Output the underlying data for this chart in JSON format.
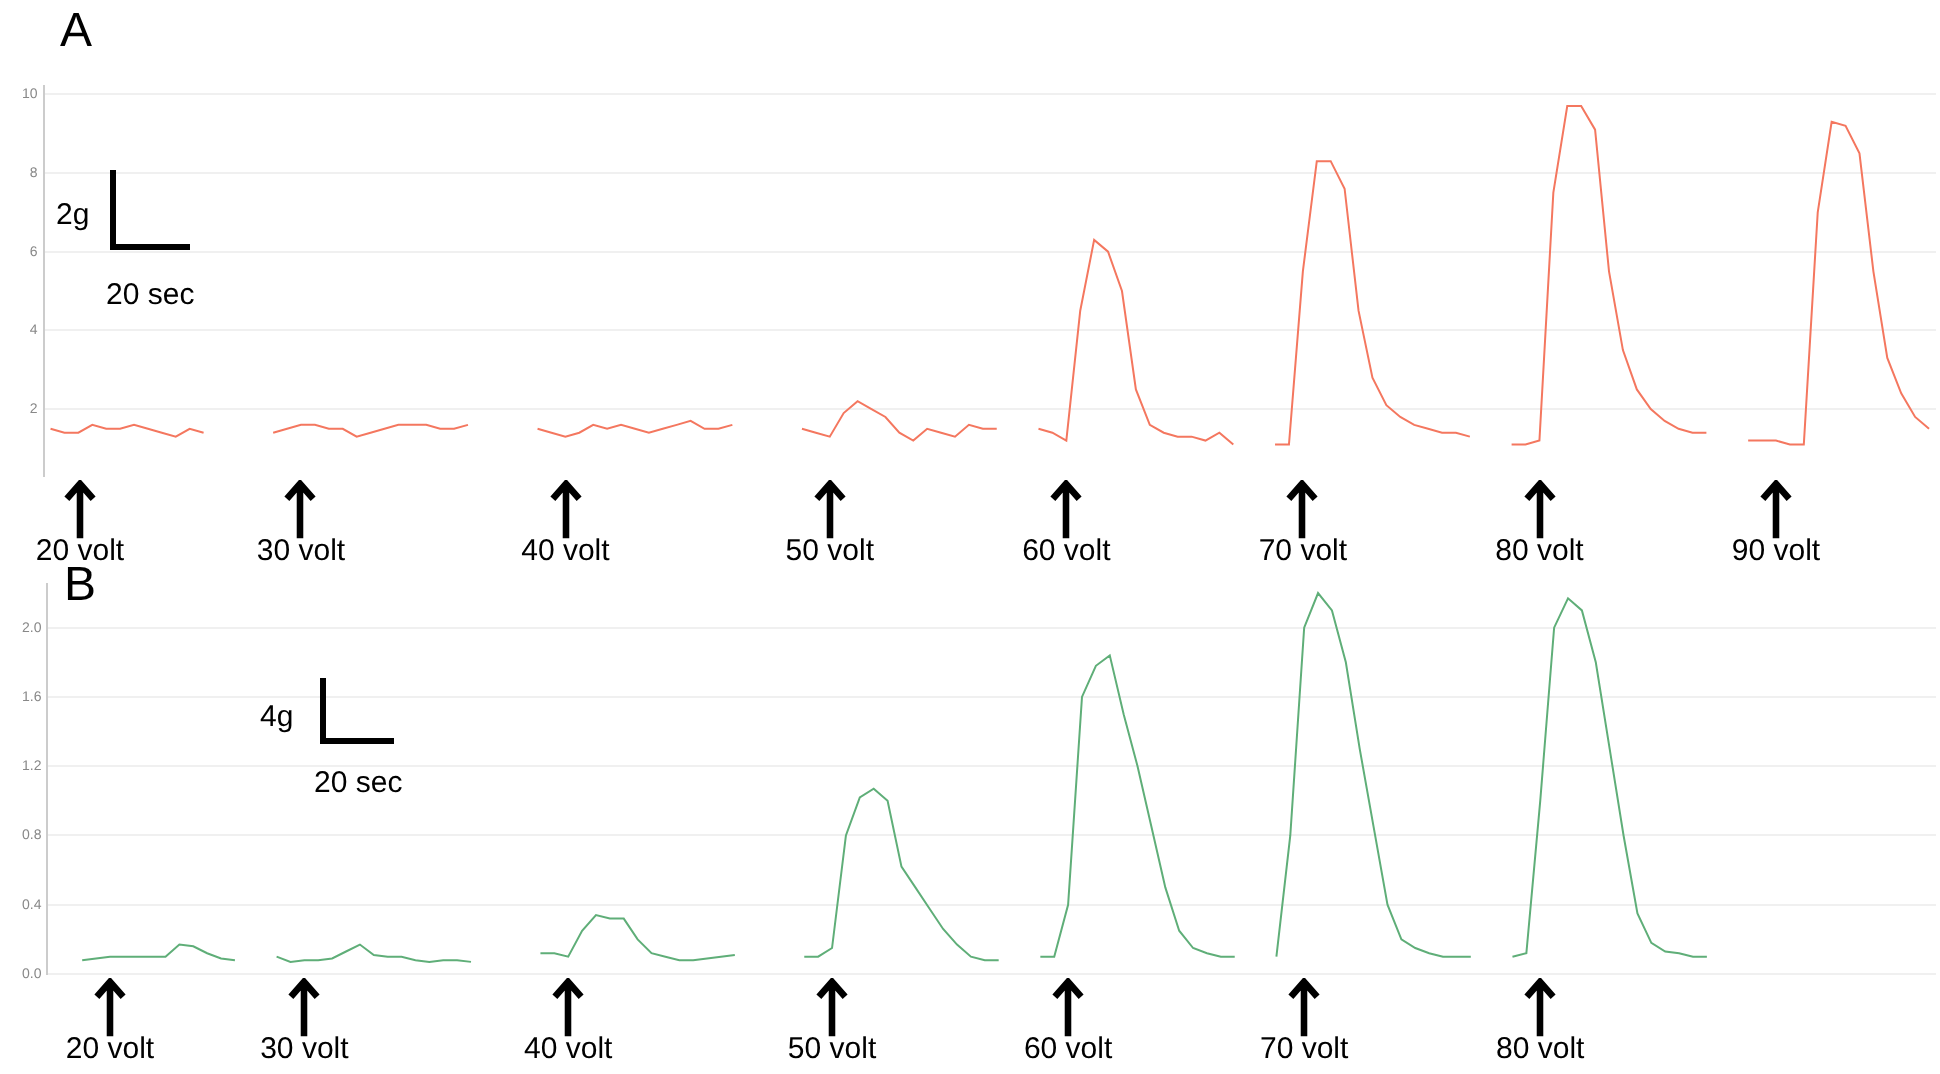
{
  "chart_data": [
    {
      "type": "line",
      "title": "A",
      "categories": [
        null,
        null,
        null,
        null,
        null,
        null,
        null,
        null,
        null,
        null,
        null,
        null,
        null,
        null,
        null,
        null,
        null,
        null,
        null,
        null,
        null,
        null,
        null,
        null,
        null,
        null,
        null,
        null,
        null,
        null,
        null,
        null,
        null,
        null,
        null,
        null,
        null,
        null,
        null,
        null,
        null,
        null,
        null,
        null,
        null,
        null,
        null,
        null,
        null,
        null,
        null,
        null,
        null,
        null,
        null,
        null,
        null,
        null,
        null,
        null,
        null,
        null,
        null,
        null,
        null,
        null,
        null,
        null,
        null,
        null,
        null,
        null,
        null,
        null,
        null,
        null,
        null,
        null,
        null,
        null,
        null,
        null,
        null,
        null,
        null,
        null,
        null,
        null,
        null,
        null,
        null,
        null,
        null,
        null,
        null,
        null,
        null,
        null,
        null,
        null,
        null,
        null,
        null,
        null,
        null,
        null,
        null,
        null,
        null,
        null,
        null,
        null,
        null,
        null,
        null,
        null,
        null,
        null,
        null,
        null,
        null,
        null,
        null,
        null,
        null,
        null,
        null,
        null,
        null,
        null,
        null,
        null,
        null,
        null,
        null,
        null
      ],
      "series": [
        {
          "color": "#f4775f",
          "values": [
            1.5,
            1.4,
            1.4,
            1.6,
            1.5,
            1.5,
            1.6,
            1.5,
            1.4,
            1.3,
            1.5,
            1.4,
            null,
            null,
            null,
            null,
            1.4,
            1.5,
            1.6,
            1.6,
            1.5,
            1.5,
            1.3,
            1.4,
            1.5,
            1.6,
            1.6,
            1.6,
            1.5,
            1.5,
            1.6,
            null,
            null,
            null,
            null,
            1.5,
            1.4,
            1.3,
            1.4,
            1.6,
            1.5,
            1.6,
            1.5,
            1.4,
            1.5,
            1.6,
            1.7,
            1.5,
            1.5,
            1.6,
            null,
            null,
            null,
            null,
            1.5,
            1.4,
            1.3,
            1.9,
            2.2,
            2.0,
            1.8,
            1.4,
            1.2,
            1.5,
            1.4,
            1.3,
            1.6,
            1.5,
            1.5,
            null,
            null,
            1.5,
            1.4,
            1.2,
            4.5,
            6.3,
            6.0,
            5.0,
            2.5,
            1.6,
            1.4,
            1.3,
            1.3,
            1.2,
            1.4,
            1.1,
            null,
            null,
            1.1,
            1.1,
            5.5,
            8.3,
            8.3,
            7.6,
            4.5,
            2.8,
            2.1,
            1.8,
            1.6,
            1.5,
            1.4,
            1.4,
            1.3,
            null,
            null,
            1.1,
            1.1,
            1.2,
            7.5,
            9.7,
            9.7,
            9.1,
            5.5,
            3.5,
            2.5,
            2.0,
            1.7,
            1.5,
            1.4,
            1.4,
            null,
            null,
            1.2,
            1.2,
            1.2,
            1.1,
            1.1,
            7.0,
            9.3,
            9.2,
            8.5,
            5.5,
            3.3,
            2.4,
            1.8,
            1.5
          ]
        }
      ],
      "ylim": [
        0.3,
        10.2
      ],
      "yticks": [
        2,
        4,
        6,
        8,
        10
      ],
      "grid": "y",
      "annotations": [
        "2g",
        "20 sec",
        "20 volt",
        "30 volt",
        "40 volt",
        "50 volt",
        "60 volt",
        "70 volt",
        "80 volt",
        "90 volt"
      ]
    },
    {
      "type": "line",
      "title": "B",
      "categories": [
        null,
        null,
        null,
        null,
        null,
        null,
        null,
        null,
        null,
        null,
        null,
        null,
        null,
        null,
        null,
        null,
        null,
        null,
        null,
        null,
        null,
        null,
        null,
        null,
        null,
        null,
        null,
        null,
        null,
        null,
        null,
        null,
        null,
        null,
        null,
        null,
        null,
        null,
        null,
        null,
        null,
        null,
        null,
        null,
        null,
        null,
        null,
        null,
        null,
        null,
        null,
        null,
        null,
        null,
        null,
        null,
        null,
        null,
        null,
        null,
        null,
        null,
        null,
        null,
        null,
        null,
        null,
        null,
        null,
        null,
        null,
        null,
        null,
        null,
        null,
        null,
        null,
        null,
        null,
        null,
        null,
        null,
        null,
        null,
        null,
        null,
        null,
        null,
        null,
        null,
        null,
        null,
        null,
        null,
        null,
        null,
        null,
        null,
        null,
        null,
        null,
        null,
        null,
        null,
        null,
        null,
        null,
        null,
        null,
        null,
        null,
        null,
        null,
        null,
        null,
        null,
        null,
        null,
        null,
        null,
        null,
        null,
        null,
        null,
        null,
        null,
        null,
        null,
        null,
        null,
        null,
        null,
        null,
        null,
        null,
        null
      ],
      "series": [
        {
          "color": "#5fae78",
          "values": [
            null,
            null,
            0.08,
            0.09,
            0.1,
            0.1,
            0.1,
            0.1,
            0.1,
            0.17,
            0.16,
            0.12,
            0.09,
            0.08,
            null,
            null,
            0.1,
            0.07,
            0.08,
            0.08,
            0.09,
            0.13,
            0.17,
            0.11,
            0.1,
            0.1,
            0.08,
            0.07,
            0.08,
            0.08,
            0.07,
            null,
            null,
            null,
            null,
            0.12,
            0.12,
            0.1,
            0.25,
            0.34,
            0.32,
            0.32,
            0.2,
            0.12,
            0.1,
            0.08,
            0.08,
            0.09,
            0.1,
            0.11,
            null,
            null,
            null,
            null,
            0.1,
            0.1,
            0.15,
            0.8,
            1.02,
            1.07,
            1.0,
            0.62,
            0.5,
            0.38,
            0.26,
            0.17,
            0.1,
            0.08,
            0.08,
            null,
            null,
            0.1,
            0.1,
            0.4,
            1.6,
            1.78,
            1.84,
            1.5,
            1.2,
            0.85,
            0.5,
            0.25,
            0.15,
            0.12,
            0.1,
            0.1,
            null,
            null,
            0.1,
            0.8,
            2.0,
            2.2,
            2.1,
            1.8,
            1.3,
            0.85,
            0.4,
            0.2,
            0.15,
            0.12,
            0.1,
            0.1,
            0.1,
            null,
            null,
            0.1,
            0.12,
            1.0,
            2.0,
            2.17,
            2.1,
            1.8,
            1.3,
            0.8,
            0.35,
            0.18,
            0.13,
            0.12,
            0.1,
            0.1,
            null,
            null,
            null,
            null,
            null,
            null,
            null,
            null,
            null,
            null,
            null,
            null,
            null,
            null,
            null,
            null
          ]
        }
      ],
      "ylim": [
        0,
        2.25
      ],
      "yticks": [
        {
          "value": 0,
          "label": "0.0"
        },
        {
          "value": 0.4,
          "label": "0.4"
        },
        {
          "value": 0.8,
          "label": "0.8"
        },
        {
          "value": 1.2,
          "label": "1.2"
        },
        {
          "value": 1.6,
          "label": "1.6"
        },
        {
          "value": 2,
          "label": "2.0"
        }
      ],
      "grid": "y",
      "annotations": [
        "4g",
        "20 sec",
        "20 volt",
        "30 volt",
        "40 volt",
        "50 volt",
        "60 volt",
        "70 volt",
        "80 volt"
      ]
    }
  ]
}
